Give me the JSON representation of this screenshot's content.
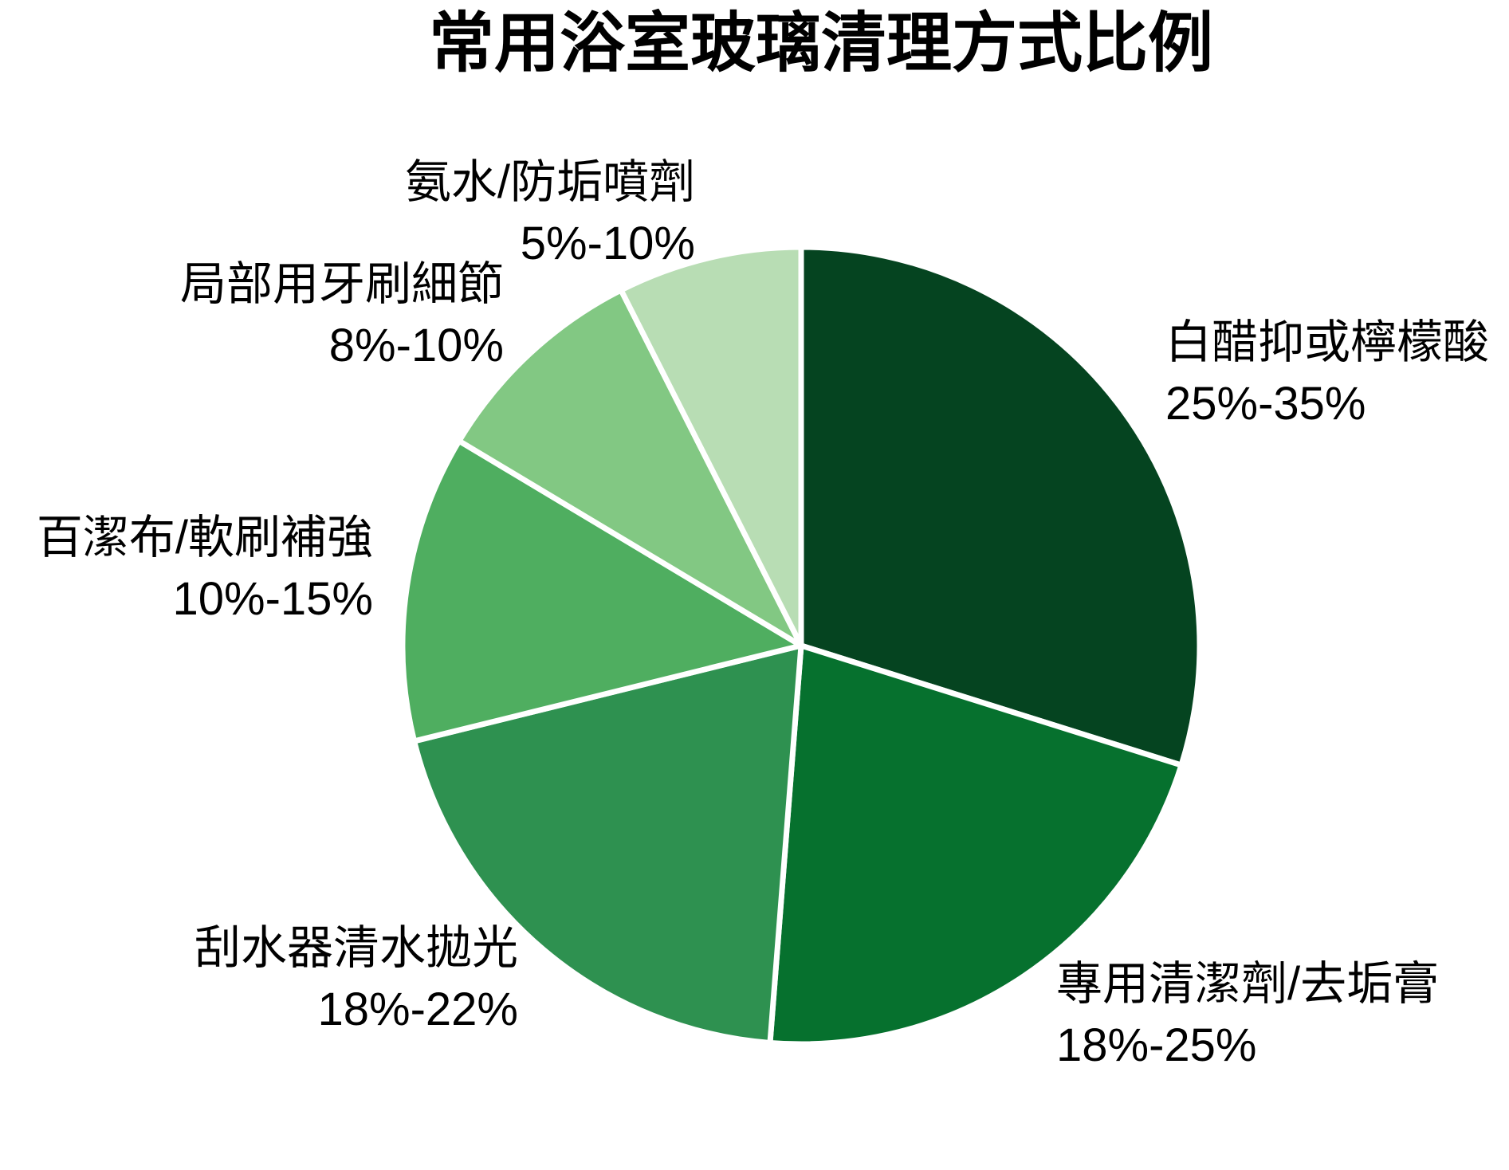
{
  "chart_data": {
    "type": "pie",
    "title": "常用浴室玻璃清理方式比例",
    "start_angle_deg": 0,
    "direction": "clockwise",
    "legend": "none",
    "label_color": "#000000",
    "separator_color": "#ffffff",
    "slices": [
      {
        "label": "白醋抑或檸檬酸",
        "value_range": "25%-35%",
        "value_mid": 30,
        "color": "#054420"
      },
      {
        "label": "專用清潔劑/去垢膏",
        "value_range": "18%-25%",
        "value_mid": 21.5,
        "color": "#06712e"
      },
      {
        "label": "刮水器清水拋光",
        "value_range": "18%-22%",
        "value_mid": 20,
        "color": "#2e9150"
      },
      {
        "label": "百潔布/軟刷補強",
        "value_range": "10%-15%",
        "value_mid": 12.5,
        "color": "#4fae60"
      },
      {
        "label": "局部用牙刷細節",
        "value_range": "8%-10%",
        "value_mid": 9,
        "color": "#82c883"
      },
      {
        "label": "氨水/防垢噴劑",
        "value_range": "5%-10%",
        "value_mid": 7.5,
        "color": "#b8ddb4"
      }
    ]
  }
}
